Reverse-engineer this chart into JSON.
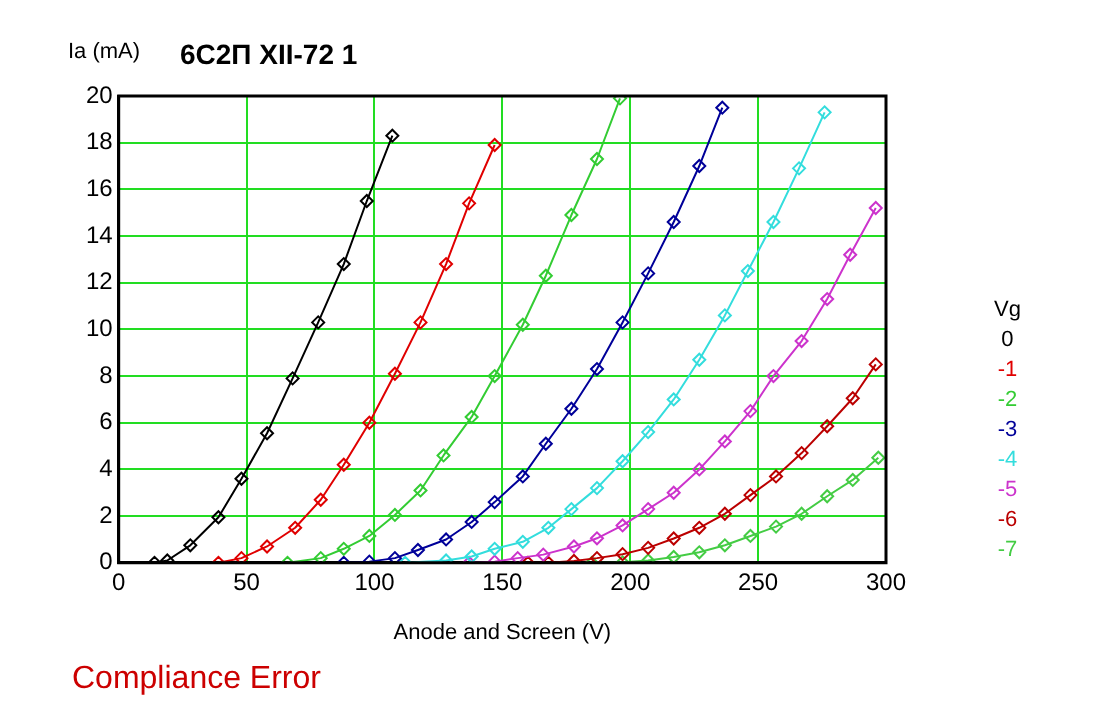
{
  "chart_data": {
    "type": "line",
    "title": "6С2П XII-72 1",
    "xlabel": "Anode and Screen (V)",
    "ylabel": "Ia (mA)",
    "legend_title": "Vg",
    "legend": "right",
    "grid": true,
    "marker": "diamond",
    "line_style": "solid",
    "xlim": [
      0,
      300
    ],
    "xticks": [
      0,
      50,
      100,
      150,
      200,
      250,
      300
    ],
    "ylim": [
      0,
      20
    ],
    "yticks": [
      0,
      2,
      4,
      6,
      8,
      10,
      12,
      14,
      16,
      18,
      20
    ],
    "annotations": [
      "Compliance Error"
    ],
    "series": [
      {
        "name": "0",
        "color": "#000000",
        "x": [
          14,
          19,
          28,
          39,
          48,
          58,
          68,
          78,
          88,
          97,
          107
        ],
        "values": [
          0,
          0.1,
          0.75,
          1.95,
          3.6,
          5.55,
          7.9,
          10.3,
          12.8,
          15.5,
          18.3
        ]
      },
      {
        "name": "-1",
        "color": "#e00000",
        "x": [
          39,
          48,
          58,
          69,
          79,
          88,
          98,
          108,
          118,
          128,
          137,
          147
        ],
        "values": [
          0,
          0.2,
          0.7,
          1.5,
          2.7,
          4.2,
          6.0,
          8.1,
          10.3,
          12.8,
          15.4,
          17.9
        ]
      },
      {
        "name": "-2",
        "color": "#33cc33",
        "x": [
          66,
          79,
          88,
          98,
          108,
          118,
          127,
          138,
          147,
          158,
          167,
          177,
          187,
          196
        ],
        "values": [
          0,
          0.2,
          0.6,
          1.15,
          2.05,
          3.1,
          4.6,
          6.25,
          8.0,
          10.2,
          12.3,
          14.9,
          17.3,
          19.9
        ]
      },
      {
        "name": "-3",
        "color": "#000099",
        "x": [
          88,
          98,
          108,
          117,
          128,
          138,
          147,
          158,
          167,
          177,
          187,
          197,
          207,
          217,
          227,
          236
        ],
        "values": [
          0,
          0.05,
          0.2,
          0.55,
          1.0,
          1.75,
          2.6,
          3.7,
          5.1,
          6.6,
          8.3,
          10.3,
          12.4,
          14.6,
          17.0,
          19.5
        ]
      },
      {
        "name": "-4",
        "color": "#33dddd",
        "x": [
          112,
          128,
          138,
          147,
          158,
          168,
          177,
          187,
          197,
          207,
          217,
          227,
          237,
          246,
          256,
          266,
          276
        ],
        "values": [
          0,
          0.1,
          0.27,
          0.6,
          0.9,
          1.5,
          2.3,
          3.2,
          4.35,
          5.6,
          7.0,
          8.7,
          10.6,
          12.5,
          14.6,
          16.9,
          19.3
        ]
      },
      {
        "name": "-5",
        "color": "#cc33cc",
        "x": [
          137,
          147,
          156,
          166,
          178,
          187,
          197,
          207,
          217,
          227,
          237,
          247,
          256,
          267,
          277,
          286,
          296
        ],
        "values": [
          0,
          0.05,
          0.2,
          0.35,
          0.7,
          1.05,
          1.6,
          2.3,
          3.0,
          4.0,
          5.2,
          6.5,
          8.0,
          9.5,
          11.3,
          13.2,
          15.2
        ]
      },
      {
        "name": "-6",
        "color": "#bb0000",
        "x": [
          160,
          168,
          178,
          187,
          197,
          207,
          217,
          227,
          237,
          247,
          257,
          267,
          277,
          287,
          296
        ],
        "values": [
          0,
          0,
          0.08,
          0.2,
          0.37,
          0.64,
          1.04,
          1.5,
          2.1,
          2.9,
          3.7,
          4.7,
          5.85,
          7.05,
          8.5
        ]
      },
      {
        "name": "-7",
        "color": "#44cc44",
        "x": [
          185,
          197,
          207,
          217,
          227,
          237,
          247,
          257,
          267,
          277,
          287,
          297
        ],
        "values": [
          0,
          0.02,
          0.1,
          0.25,
          0.45,
          0.75,
          1.15,
          1.55,
          2.1,
          2.85,
          3.55,
          4.5
        ]
      }
    ]
  }
}
